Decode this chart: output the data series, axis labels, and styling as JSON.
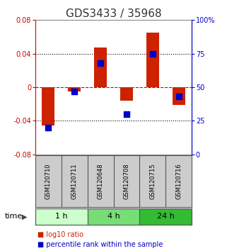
{
  "title": "GDS3433 / 35968",
  "samples": [
    "GSM120710",
    "GSM120711",
    "GSM120648",
    "GSM120708",
    "GSM120715",
    "GSM120716"
  ],
  "log10_ratio": [
    -0.046,
    -0.005,
    0.047,
    -0.016,
    0.065,
    -0.021
  ],
  "percentile_rank": [
    20,
    47,
    68,
    30,
    75,
    43
  ],
  "ylim_left": [
    -0.08,
    0.08
  ],
  "ylim_right": [
    0,
    100
  ],
  "yticks_left": [
    -0.08,
    -0.04,
    0,
    0.04,
    0.08
  ],
  "yticks_right": [
    0,
    25,
    50,
    75,
    100
  ],
  "ytick_labels_left": [
    "-0.08",
    "-0.04",
    "0",
    "0.04",
    "0.08"
  ],
  "ytick_labels_right": [
    "0",
    "25",
    "50",
    "75",
    "100%"
  ],
  "zero_dashed_color": "#cc0000",
  "dotted_color": "#000000",
  "bar_color": "#cc2200",
  "dot_color": "#0000cc",
  "bar_width": 0.5,
  "dot_size": 30,
  "time_groups": [
    {
      "label": "1 h",
      "samples": [
        0,
        1
      ],
      "color": "#ccffcc"
    },
    {
      "label": "4 h",
      "samples": [
        2,
        3
      ],
      "color": "#77dd77"
    },
    {
      "label": "24 h",
      "samples": [
        4,
        5
      ],
      "color": "#33bb33"
    }
  ],
  "legend_red_label": "log10 ratio",
  "legend_blue_label": "percentile rank within the sample",
  "time_label": "time",
  "background_color": "#ffffff",
  "plot_bg": "#ffffff",
  "title_fontsize": 11,
  "tick_fontsize": 7,
  "sample_fontsize": 6,
  "time_fontsize": 8,
  "legend_fontsize": 7
}
